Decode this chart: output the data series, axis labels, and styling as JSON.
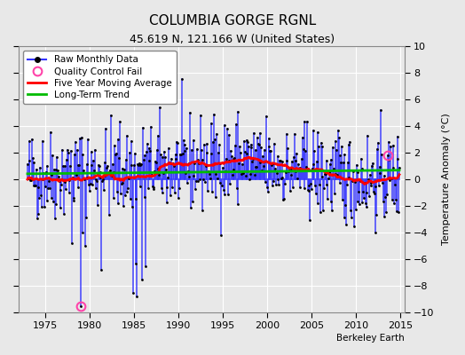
{
  "title": "COLUMBIA GORGE RGNL",
  "subtitle": "45.619 N, 121.166 W (United States)",
  "ylabel": "Temperature Anomaly (°C)",
  "credit": "Berkeley Earth",
  "ylim": [
    -10,
    10
  ],
  "xlim": [
    1972.0,
    2015.5
  ],
  "yticks": [
    -10,
    -8,
    -6,
    -4,
    -2,
    0,
    2,
    4,
    6,
    8,
    10
  ],
  "xticks": [
    1975,
    1980,
    1985,
    1990,
    1995,
    2000,
    2005,
    2010,
    2015
  ],
  "bg_color": "#e8e8e8",
  "plot_bg_color": "#e8e8e8",
  "grid_color": "#ffffff",
  "raw_line_color": "#3333ff",
  "raw_dot_color": "#000000",
  "ma_color": "#ff0000",
  "trend_color": "#00bb00",
  "qc_color": "#ff44aa",
  "seed": 42,
  "start_year": 1973.0,
  "end_year": 2014.917,
  "n_months": 504,
  "ma_window": 60,
  "qc_fail_indices": [
    72,
    487
  ],
  "qc_fail_values": [
    -9.5,
    1.8
  ]
}
